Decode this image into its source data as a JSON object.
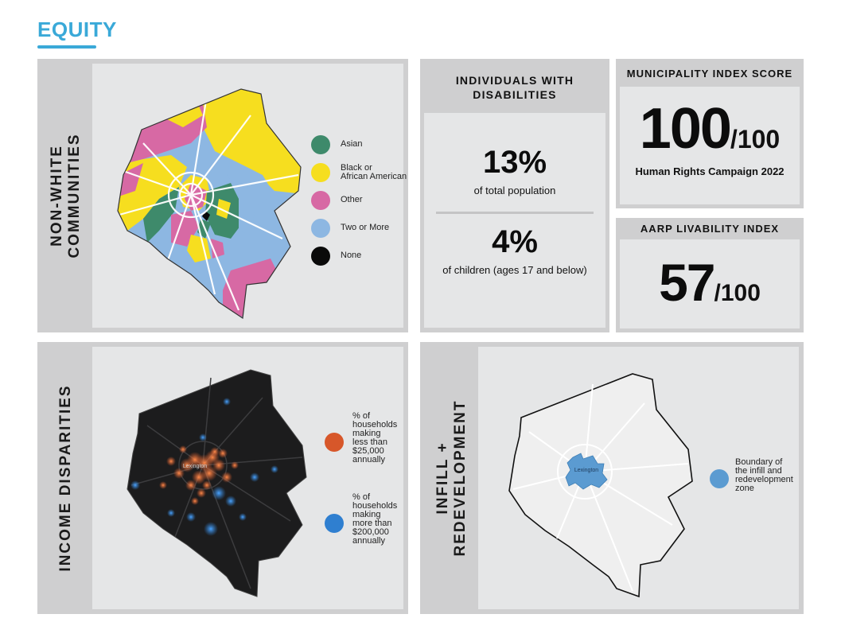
{
  "page": {
    "heading": "EQUITY",
    "accent_color": "#3aa9d8"
  },
  "non_white": {
    "title_line1": "NON-WHITE",
    "title_line2": "COMMUNITIES",
    "legend": [
      {
        "label": "Asian",
        "color": "#3e8a6b"
      },
      {
        "label": "Black or\nAfrican American",
        "color": "#f6de1f"
      },
      {
        "label": "Other",
        "color": "#d769a4"
      },
      {
        "label": "Two or More",
        "color": "#8db7e2"
      },
      {
        "label": "None",
        "color": "#0a0a0a"
      }
    ]
  },
  "disabilities": {
    "title": "INDIVIDUALS WITH\nDISABILITIES",
    "stat1_value": "13%",
    "stat1_label": "of total population",
    "stat2_value": "4%",
    "stat2_label": "of children (ages 17 and below)"
  },
  "municipality": {
    "title": "MUNICIPALITY INDEX SCORE",
    "score": "100",
    "out_of": "/100",
    "source": "Human Rights Campaign 2022"
  },
  "aarp": {
    "title": "AARP LIVABILITY INDEX",
    "score": "57",
    "out_of": "/100"
  },
  "income": {
    "title": "INCOME DISPARITIES",
    "map_label": "Lexington",
    "legend": [
      {
        "label": "% of\nhouseholds\nmaking\nless than\n$25,000\nannually",
        "color": "#d7572a"
      },
      {
        "label": "% of\nhouseholds\nmaking\nmore than\n$200,000\nannually",
        "color": "#2f7fd0"
      }
    ]
  },
  "infill": {
    "title_line1": "INFILL +",
    "title_line2": "REDEVELOPMENT",
    "map_label": "Lexington",
    "legend": [
      {
        "label": "Boundary of\nthe infill and\nredevelopment\nzone",
        "color": "#5b9bd1"
      }
    ]
  }
}
